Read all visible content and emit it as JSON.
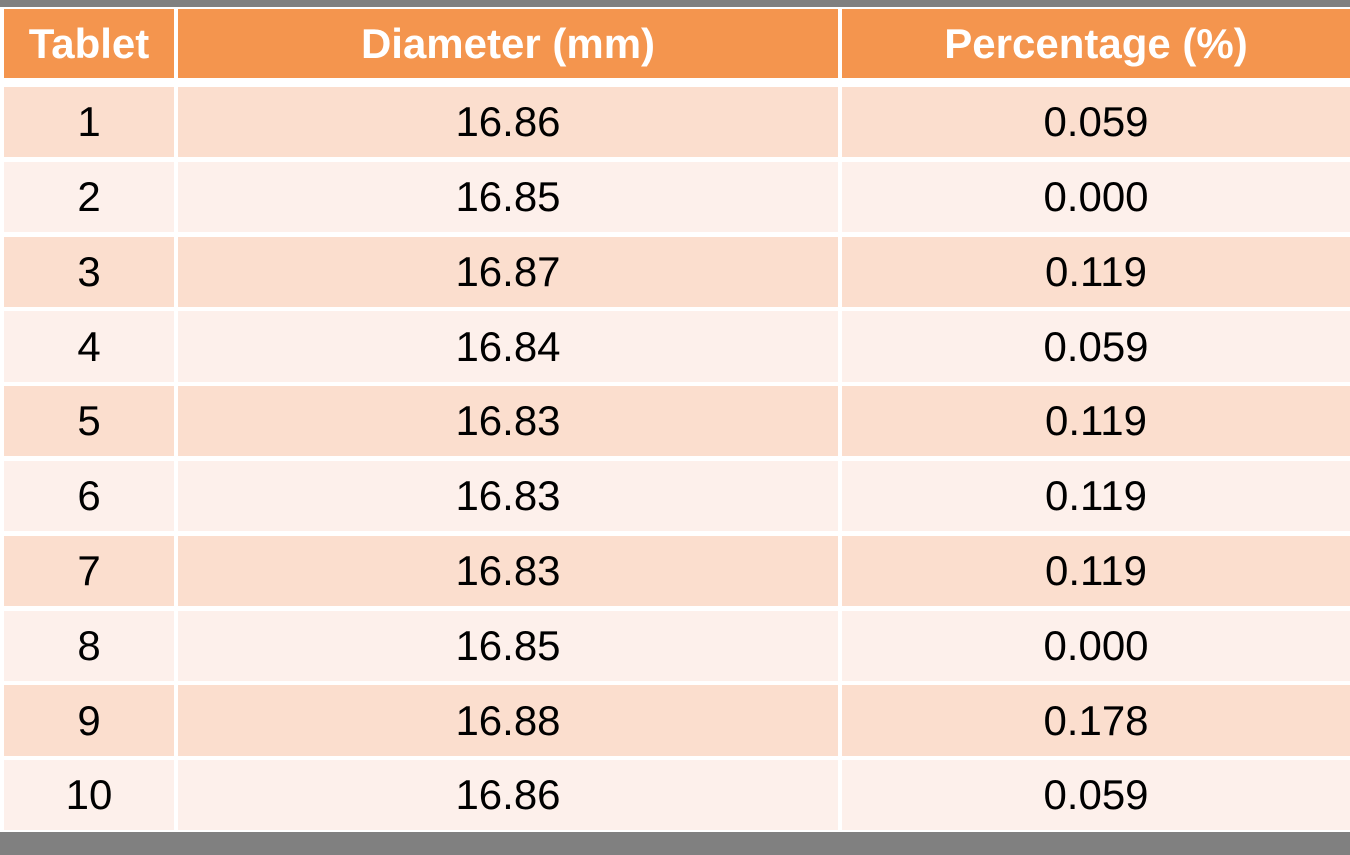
{
  "table": {
    "columns": [
      "Tablet",
      "Diameter (mm)",
      "Percentage (%)"
    ],
    "rows": [
      [
        "1",
        "16.86",
        "0.059"
      ],
      [
        "2",
        "16.85",
        "0.000"
      ],
      [
        "3",
        "16.87",
        "0.119"
      ],
      [
        "4",
        "16.84",
        "0.059"
      ],
      [
        "5",
        "16.83",
        "0.119"
      ],
      [
        "6",
        "16.83",
        "0.119"
      ],
      [
        "7",
        "16.83",
        "0.119"
      ],
      [
        "8",
        "16.85",
        "0.000"
      ],
      [
        "9",
        "16.88",
        "0.178"
      ],
      [
        "10",
        "16.86",
        "0.059"
      ]
    ]
  },
  "chart_data": {
    "type": "table",
    "columns": [
      "Tablet",
      "Diameter (mm)",
      "Percentage (%)"
    ],
    "tablet": [
      1,
      2,
      3,
      4,
      5,
      6,
      7,
      8,
      9,
      10
    ],
    "diameter_mm": [
      16.86,
      16.85,
      16.87,
      16.84,
      16.83,
      16.83,
      16.83,
      16.85,
      16.88,
      16.86
    ],
    "percentage": [
      0.059,
      0.0,
      0.119,
      0.059,
      0.119,
      0.119,
      0.119,
      0.0,
      0.178,
      0.059
    ]
  },
  "colors": {
    "header_bg": "#F4954E",
    "header_text": "#FFFFFF",
    "row_band_dark": "#FBDECE",
    "row_band_light": "#FDF0EB",
    "body_text": "#000000",
    "frame_bar": "#808080",
    "grid_border": "#FFFFFF"
  }
}
